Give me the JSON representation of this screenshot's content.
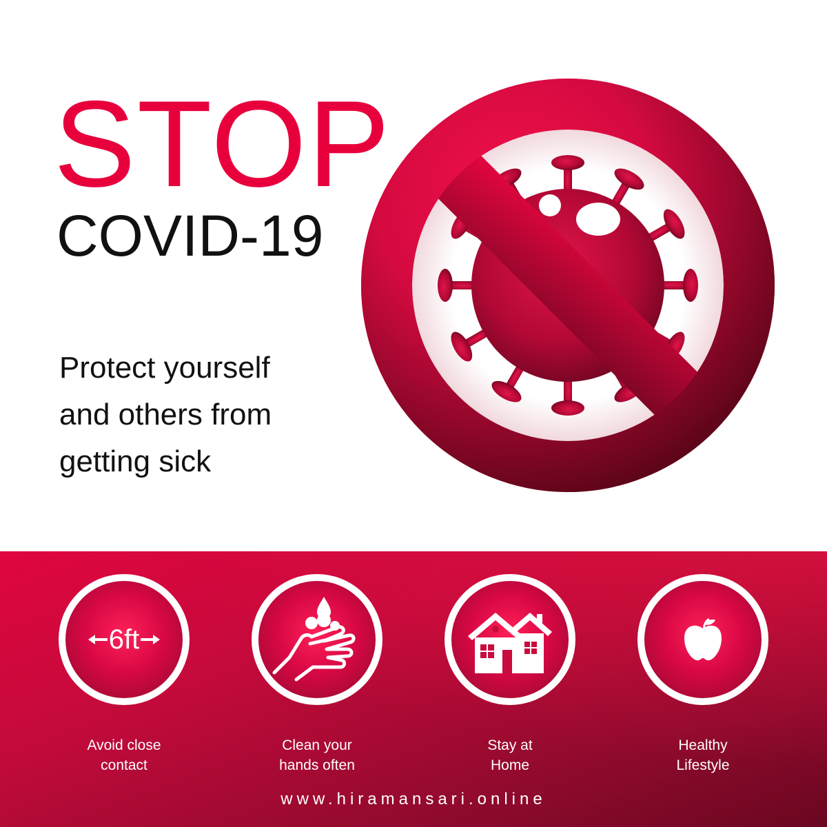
{
  "headline": {
    "stop": "STOP",
    "covid": "COVID-19",
    "tagline_lines": [
      "Protect yourself",
      "and others from",
      "getting sick"
    ]
  },
  "sign": {
    "icon": "no-virus-icon",
    "colors": {
      "ring": "#e8003d",
      "ring_dark": "#7a0624",
      "virus": "#c60a3a"
    }
  },
  "tips": [
    {
      "icon": "distance-6ft-icon",
      "badge_text": "6ft",
      "label_lines": [
        "Avoid close",
        "contact"
      ]
    },
    {
      "icon": "washing-hands-icon",
      "label_lines": [
        "Clean your",
        "hands often"
      ]
    },
    {
      "icon": "house-icon",
      "label_lines": [
        "Stay at",
        "Home"
      ]
    },
    {
      "icon": "apple-icon",
      "label_lines": [
        "Healthy",
        "Lifestyle"
      ]
    }
  ],
  "footer": {
    "url": "www.hiramansari.online"
  },
  "colors": {
    "accent": "#e8003d",
    "dark": "#6a0720",
    "text": "#111111"
  }
}
